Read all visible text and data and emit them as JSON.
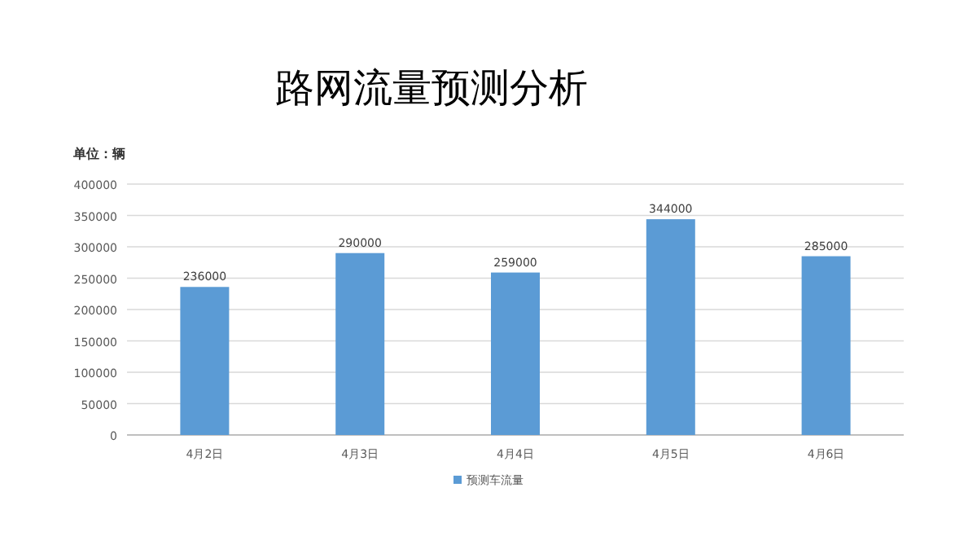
{
  "chart_data": {
    "type": "bar",
    "title": "路网流量预测分析",
    "ylabel": "单位：辆",
    "categories": [
      "4月2日",
      "4月3日",
      "4月4日",
      "4月5日",
      "4月6日"
    ],
    "series": [
      {
        "name": "预测车流量",
        "color": "#5b9bd5",
        "values": [
          236000,
          290000,
          259000,
          344000,
          285000
        ]
      }
    ],
    "ylim": [
      0,
      400000
    ],
    "yticks": [
      0,
      50000,
      100000,
      150000,
      200000,
      250000,
      300000,
      350000,
      400000
    ],
    "grid": "y",
    "legend": "bottom",
    "data_labels": true
  }
}
